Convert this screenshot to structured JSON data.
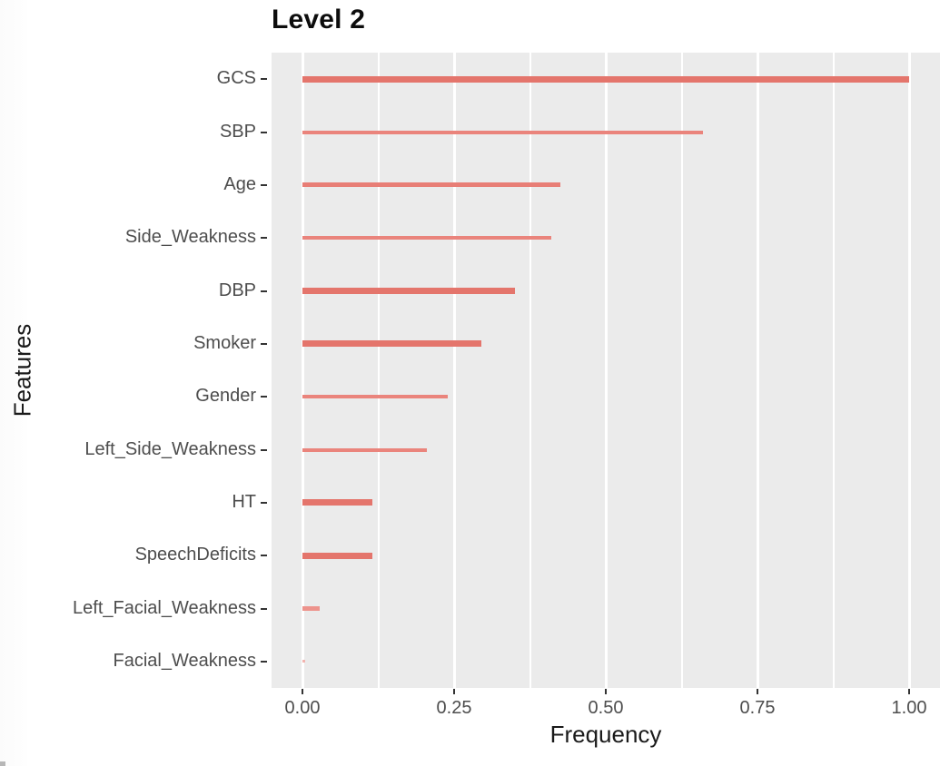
{
  "title": "Level 2",
  "colors": {
    "panel_background": "#EBEBEB",
    "gridline": "#FFFFFF",
    "axis_text": "#4D4D4D",
    "tick_mark": "#333333",
    "axis_title": "#1A1A1A",
    "title_text": "#0D0D0D",
    "bar_main": "#E4756C"
  },
  "chart_data": {
    "type": "bar",
    "orientation": "horizontal",
    "title": "Level 2",
    "xlabel": "Frequency",
    "ylabel": "Features",
    "legend": "none",
    "grid": "vertical white gridlines on gray panel, no horizontal gridlines",
    "xlim": [
      -0.05,
      1.05
    ],
    "x_major_ticks": [
      0,
      0.25,
      0.5,
      0.75,
      1.0
    ],
    "x_tick_labels": [
      "0.00",
      "0.25",
      "0.50",
      "0.75",
      "1.00"
    ],
    "x_minor_ticks": [
      0.125,
      0.375,
      0.625,
      0.875
    ],
    "categories": [
      "GCS",
      "SBP",
      "Age",
      "Side_Weakness",
      "DBP",
      "Smoker",
      "Gender",
      "Left_Side_Weakness",
      "HT",
      "SpeechDeficits",
      "Left_Facial_Weakness",
      "Facial_Weakness"
    ],
    "values": [
      1.0,
      0.66,
      0.425,
      0.41,
      0.35,
      0.295,
      0.24,
      0.205,
      0.115,
      0.115,
      0.028,
      0.005
    ],
    "bars": [
      {
        "label": "GCS",
        "value": 1.0,
        "thickness_px": 7,
        "color": "#E4756C"
      },
      {
        "label": "SBP",
        "value": 0.66,
        "thickness_px": 4,
        "color": "#EA847C"
      },
      {
        "label": "Age",
        "value": 0.425,
        "thickness_px": 5,
        "color": "#E87E76"
      },
      {
        "label": "Side_Weakness",
        "value": 0.41,
        "thickness_px": 4,
        "color": "#EA847C"
      },
      {
        "label": "DBP",
        "value": 0.35,
        "thickness_px": 7,
        "color": "#E4756C"
      },
      {
        "label": "Smoker",
        "value": 0.295,
        "thickness_px": 7,
        "color": "#E4756C"
      },
      {
        "label": "Gender",
        "value": 0.24,
        "thickness_px": 4,
        "color": "#EA847C"
      },
      {
        "label": "Left_Side_Weakness",
        "value": 0.205,
        "thickness_px": 4,
        "color": "#EA847C"
      },
      {
        "label": "HT",
        "value": 0.115,
        "thickness_px": 7,
        "color": "#E4756C"
      },
      {
        "label": "SpeechDeficits",
        "value": 0.115,
        "thickness_px": 7,
        "color": "#E4756C"
      },
      {
        "label": "Left_Facial_Weakness",
        "value": 0.028,
        "thickness_px": 5,
        "color": "#ED938C"
      },
      {
        "label": "Facial_Weakness",
        "value": 0.005,
        "thickness_px": 3,
        "color": "#F2B4AF"
      }
    ]
  }
}
